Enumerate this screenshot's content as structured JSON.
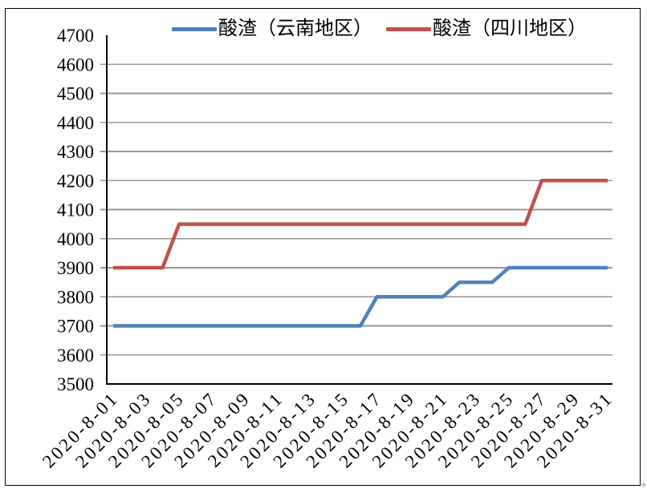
{
  "chart_data": {
    "type": "line",
    "title": "",
    "xlabel": "",
    "ylabel": "",
    "x": [
      "2020-8-01",
      "2020-8-02",
      "2020-8-03",
      "2020-8-04",
      "2020-8-05",
      "2020-8-06",
      "2020-8-07",
      "2020-8-08",
      "2020-8-09",
      "2020-8-10",
      "2020-8-11",
      "2020-8-12",
      "2020-8-13",
      "2020-8-14",
      "2020-8-15",
      "2020-8-16",
      "2020-8-17",
      "2020-8-18",
      "2020-8-19",
      "2020-8-20",
      "2020-8-21",
      "2020-8-22",
      "2020-8-23",
      "2020-8-24",
      "2020-8-25",
      "2020-8-26",
      "2020-8-27",
      "2020-8-28",
      "2020-8-29",
      "2020-8-30",
      "2020-8-31"
    ],
    "x_tick_labels": [
      "2020-8-01",
      "2020-8-03",
      "2020-8-05",
      "2020-8-07",
      "2020-8-09",
      "2020-8-11",
      "2020-8-13",
      "2020-8-15",
      "2020-8-17",
      "2020-8-19",
      "2020-8-21",
      "2020-8-23",
      "2020-8-25",
      "2020-8-27",
      "2020-8-29",
      "2020-8-31"
    ],
    "x_tick_every": 2,
    "series": [
      {
        "name": "酸渣（云南地区）",
        "color": "#4F81BD",
        "values": [
          3700,
          3700,
          3700,
          3700,
          3700,
          3700,
          3700,
          3700,
          3700,
          3700,
          3700,
          3700,
          3700,
          3700,
          3700,
          3700,
          3800,
          3800,
          3800,
          3800,
          3800,
          3850,
          3850,
          3850,
          3900,
          3900,
          3900,
          3900,
          3900,
          3900,
          3900
        ]
      },
      {
        "name": "酸渣（四川地区）",
        "color": "#C0504D",
        "values": [
          3900,
          3900,
          3900,
          3900,
          4050,
          4050,
          4050,
          4050,
          4050,
          4050,
          4050,
          4050,
          4050,
          4050,
          4050,
          4050,
          4050,
          4050,
          4050,
          4050,
          4050,
          4050,
          4050,
          4050,
          4050,
          4050,
          4200,
          4200,
          4200,
          4200,
          4200
        ]
      }
    ],
    "ylim": [
      3500,
      4700
    ],
    "y_step": 100,
    "grid": true,
    "gridline_color": "#969696",
    "axis_color": "#000000",
    "legend_position": "top",
    "x_label_rotation_deg": 45
  },
  "legend": {
    "items": [
      {
        "label": "酸渣（云南地区）",
        "color": "#4F81BD"
      },
      {
        "label": "酸渣（四川地区）",
        "color": "#C0504D"
      }
    ]
  },
  "decorations": {
    "anchor_mark": "✛"
  }
}
